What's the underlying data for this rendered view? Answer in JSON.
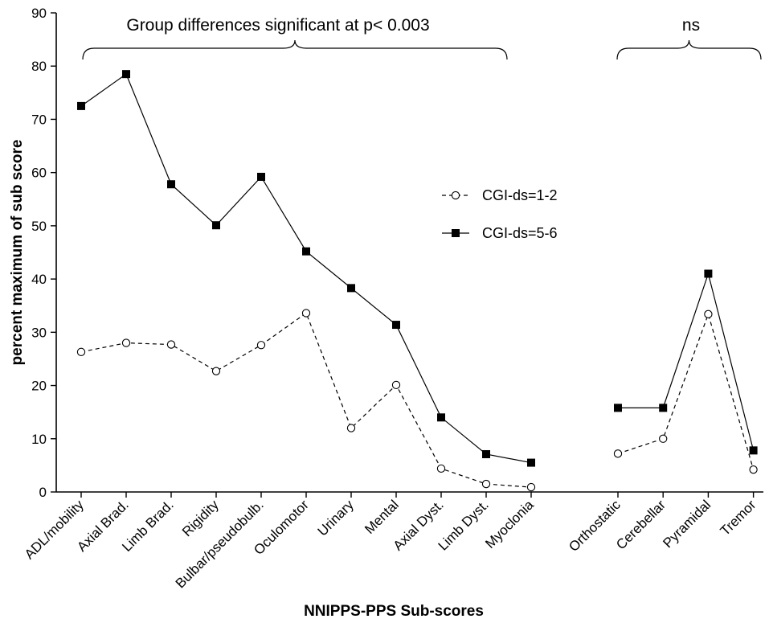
{
  "chart_data": {
    "type": "line",
    "xlabel": "NNIPPS-PPS Sub-scores",
    "ylabel": "percent maximum of sub score",
    "ylim": [
      0,
      90
    ],
    "yticks": [
      0,
      10,
      20,
      30,
      40,
      50,
      60,
      70,
      80,
      90
    ],
    "grid": false,
    "legend_position": "center-right",
    "groups": [
      {
        "categories": [
          "ADL/mobility",
          "Axial Brad.",
          "Limb Brad.",
          "Rigidity",
          "Bulbar/pseudobulb.",
          "Oculomotor",
          "Urinary",
          "Mental",
          "Axial Dyst.",
          "Limb Dyst.",
          "Myoclonia"
        ],
        "annotation": "Group differences significant at p< 0.003",
        "series": [
          {
            "name": "CGI-ds=1-2",
            "values": [
              26.3,
              28.0,
              27.7,
              22.7,
              27.6,
              33.6,
              12.0,
              20.1,
              4.4,
              1.5,
              0.9
            ]
          },
          {
            "name": "CGI-ds=5-6",
            "values": [
              72.5,
              78.5,
              57.8,
              50.1,
              59.2,
              45.2,
              38.3,
              31.4,
              14.0,
              7.1,
              5.5
            ]
          }
        ]
      },
      {
        "categories": [
          "Orthostatic",
          "Cerebellar",
          "Pyramidal",
          "Tremor"
        ],
        "annotation": "ns",
        "series": [
          {
            "name": "CGI-ds=1-2",
            "values": [
              7.2,
              10.0,
              33.4,
              4.2
            ]
          },
          {
            "name": "CGI-ds=5-6",
            "values": [
              15.8,
              15.8,
              41.0,
              7.8
            ]
          }
        ]
      }
    ],
    "legend": [
      {
        "name": "CGI-ds=1-2",
        "marker": "open-circle",
        "line": "dashed"
      },
      {
        "name": "CGI-ds=5-6",
        "marker": "filled-square",
        "line": "solid"
      }
    ],
    "colors": {
      "line": "#000000",
      "background": "#ffffff"
    }
  }
}
